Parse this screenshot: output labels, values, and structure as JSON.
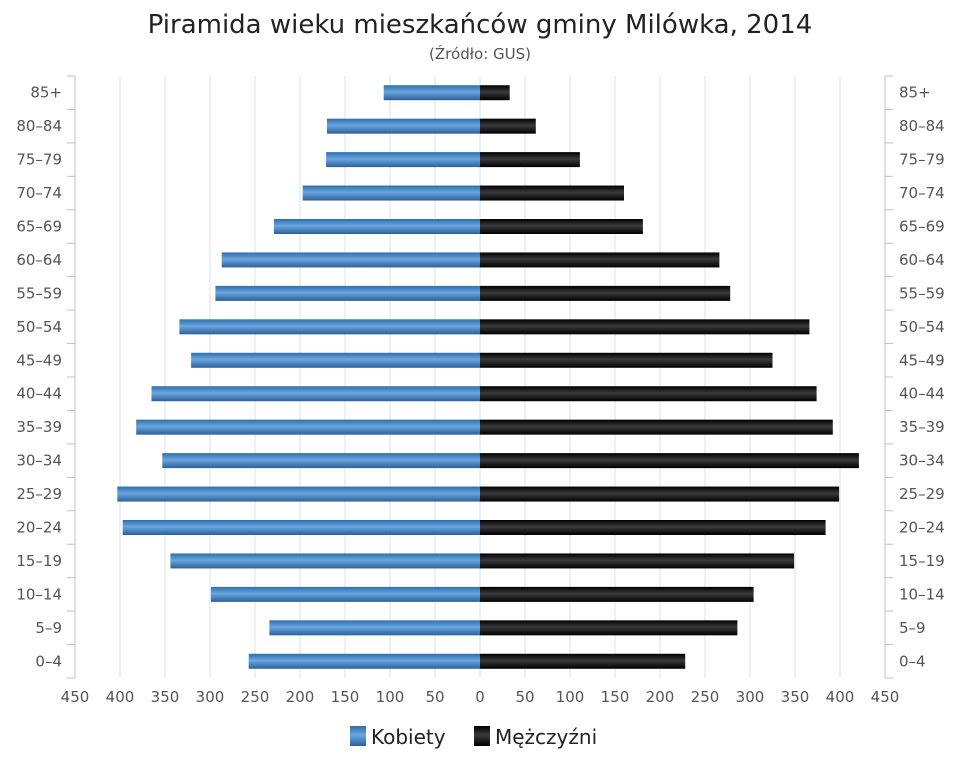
{
  "chart_data": {
    "type": "bar",
    "orientation": "horizontal-population-pyramid",
    "title": "Piramida wieku mieszkańców gminy Milówka, 2014",
    "subtitle": "(Źródło: GUS)",
    "categories": [
      "85+",
      "80-84",
      "75-79",
      "70-74",
      "65-69",
      "60-64",
      "55-59",
      "50-54",
      "45-49",
      "40-44",
      "35-39",
      "30-34",
      "25-29",
      "20-24",
      "15-19",
      "10-14",
      "5-9",
      "0-4"
    ],
    "series": [
      {
        "name": "Kobiety",
        "color": "#4a88c8",
        "values": [
          107,
          170,
          171,
          197,
          229,
          287,
          294,
          334,
          321,
          365,
          382,
          353,
          403,
          397,
          344,
          299,
          234,
          257
        ]
      },
      {
        "name": "Mężczyźni",
        "color": "#1a1a1a",
        "values": [
          33,
          62,
          111,
          160,
          181,
          266,
          278,
          366,
          325,
          374,
          392,
          421,
          399,
          384,
          349,
          304,
          286,
          228
        ]
      }
    ],
    "x_ticks": [
      "450",
      "400",
      "350",
      "300",
      "250",
      "200",
      "150",
      "100",
      "50",
      "0",
      "50",
      "100",
      "150",
      "200",
      "250",
      "300",
      "350",
      "400",
      "450"
    ],
    "xlim": [
      -450,
      450
    ],
    "grid": true,
    "legend_position": "bottom"
  }
}
